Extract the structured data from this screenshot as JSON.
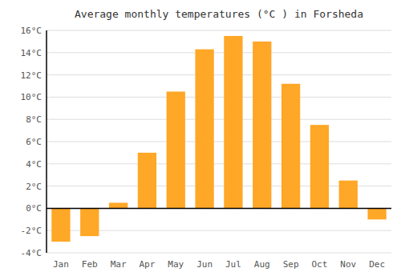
{
  "chart_data": {
    "type": "bar",
    "title": "Average monthly temperatures (°C ) in Forsheda",
    "categories": [
      "Jan",
      "Feb",
      "Mar",
      "Apr",
      "May",
      "Jun",
      "Jul",
      "Aug",
      "Sep",
      "Oct",
      "Nov",
      "Dec"
    ],
    "values": [
      -3.0,
      -2.5,
      0.5,
      5.0,
      10.5,
      14.3,
      15.5,
      15.0,
      11.2,
      7.5,
      2.5,
      -1.0
    ],
    "color": "#FFA726",
    "ylim": [
      -4,
      16
    ],
    "yticks": [
      {
        "value": -4,
        "label": "-4°C"
      },
      {
        "value": -2,
        "label": "-2°C"
      },
      {
        "value": 0,
        "label": "0°C"
      },
      {
        "value": 2,
        "label": "2°C"
      },
      {
        "value": 4,
        "label": "4°C"
      },
      {
        "value": 6,
        "label": "6°C"
      },
      {
        "value": 8,
        "label": "8°C"
      },
      {
        "value": 10,
        "label": "10°C"
      },
      {
        "value": 12,
        "label": "12°C"
      },
      {
        "value": 14,
        "label": "14°C"
      },
      {
        "value": 16,
        "label": "16°C"
      }
    ],
    "grid": true
  }
}
